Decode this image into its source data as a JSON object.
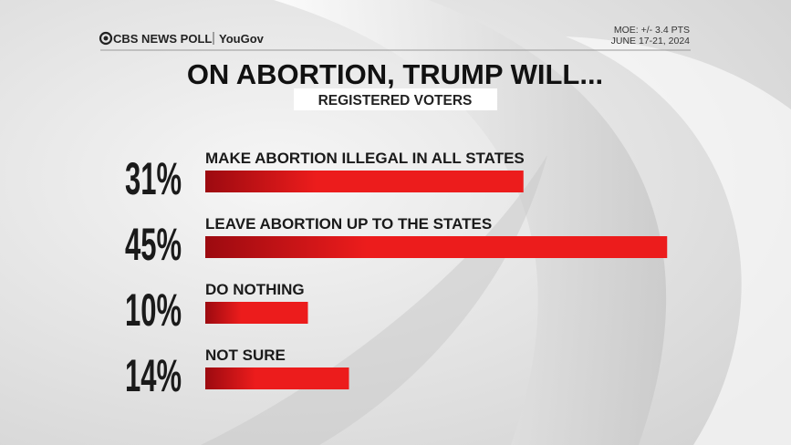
{
  "chart_data": {
    "type": "bar",
    "orientation": "horizontal",
    "title": "ON ABORTION, TRUMP WILL...",
    "subtitle": "REGISTERED VOTERS",
    "source": "CBS NEWS POLL",
    "partner": "YouGov",
    "moe": "MOE: +/- 3.4 PTS",
    "date": "JUNE 17-21, 2024",
    "categories": [
      "MAKE ABORTION ILLEGAL IN ALL STATES",
      "LEAVE ABORTION UP TO THE STATES",
      "DO NOTHING",
      "NOT SURE"
    ],
    "values": [
      31,
      45,
      10,
      14
    ],
    "value_labels": [
      "31%",
      "45%",
      "10%",
      "14%"
    ],
    "color": "#ec1c1c"
  }
}
